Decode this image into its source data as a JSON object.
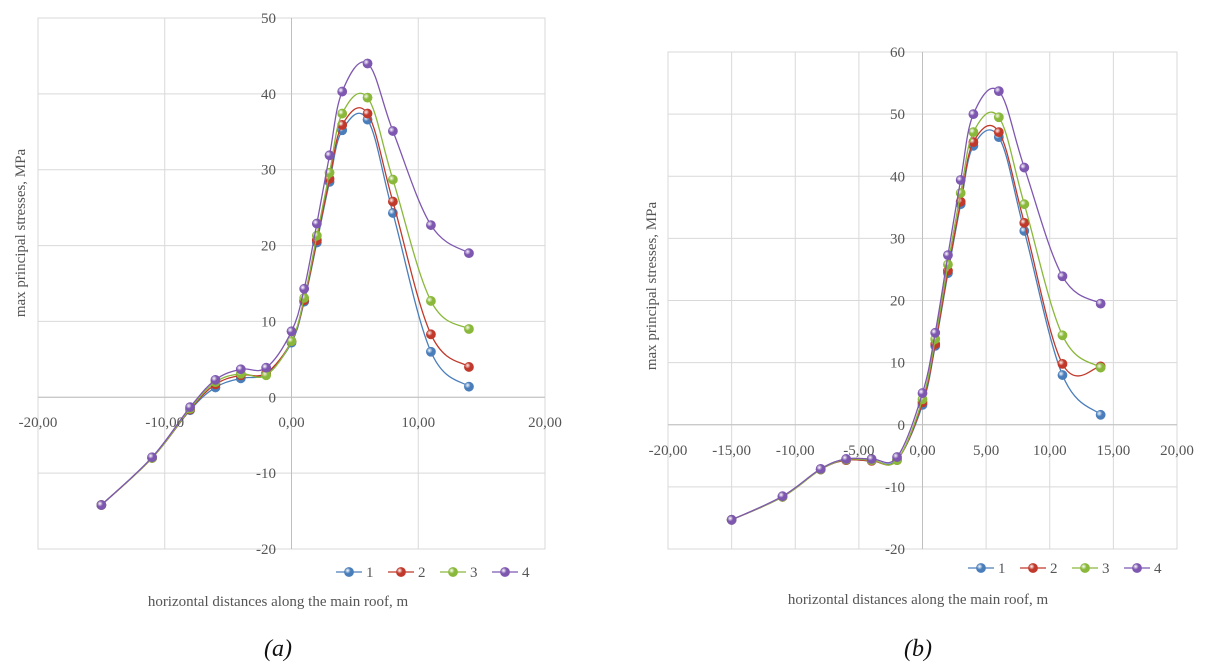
{
  "figure": {
    "panels": [
      "(a)",
      "(b)"
    ]
  },
  "chart_data": [
    {
      "type": "scatter",
      "panel": "(a)",
      "title": "",
      "xlabel": "horizontal distances along the main roof, m",
      "ylabel": "max principal stresses, MPa",
      "xlim": [
        -20,
        20
      ],
      "ylim": [
        -20,
        50
      ],
      "x_ticks": [
        -20,
        -10,
        0,
        10,
        20
      ],
      "x_tick_labels": [
        "-20,00",
        "-10,00",
        "0,00",
        "10,00",
        "20,00"
      ],
      "y_ticks": [
        -20,
        -10,
        0,
        10,
        20,
        30,
        40,
        50
      ],
      "y_tick_labels": [
        "-20",
        "-10",
        "0",
        "10",
        "20",
        "30",
        "40",
        "50"
      ],
      "grid": true,
      "smooth_lines": true,
      "legend_position": "bottom-right",
      "series": [
        {
          "name": "1",
          "color": "#4a7ebb",
          "points": [
            [
              -15,
              -14.2
            ],
            [
              -11,
              -8
            ],
            [
              -8,
              -1.7
            ],
            [
              -6,
              1.3
            ],
            [
              -4,
              2.5
            ],
            [
              -2,
              3.1
            ],
            [
              0,
              7.2
            ],
            [
              1,
              12.6
            ],
            [
              2,
              20.4
            ],
            [
              3,
              28.4
            ],
            [
              4,
              35.2
            ],
            [
              6,
              36.6
            ],
            [
              8,
              24.3
            ],
            [
              11,
              6
            ],
            [
              14,
              1.4
            ]
          ]
        },
        {
          "name": "2",
          "color": "#c0392b",
          "points": [
            [
              -15,
              -14.2
            ],
            [
              -11,
              -8
            ],
            [
              -8,
              -1.6
            ],
            [
              -6,
              1.7
            ],
            [
              -4,
              2.9
            ],
            [
              -2,
              3.2
            ],
            [
              0,
              7.4
            ],
            [
              1,
              12.8
            ],
            [
              2,
              20.7
            ],
            [
              3,
              28.8
            ],
            [
              4,
              35.9
            ],
            [
              6,
              37.4
            ],
            [
              8,
              25.8
            ],
            [
              11,
              8.3
            ],
            [
              14,
              4
            ]
          ]
        },
        {
          "name": "3",
          "color": "#8ab83a",
          "points": [
            [
              -15,
              -14.2
            ],
            [
              -11,
              -8
            ],
            [
              -8,
              -1.5
            ],
            [
              -6,
              2
            ],
            [
              -4,
              3.1
            ],
            [
              -2,
              2.9
            ],
            [
              0,
              7.4
            ],
            [
              1,
              13.1
            ],
            [
              2,
              21.3
            ],
            [
              3,
              29.6
            ],
            [
              4,
              37.4
            ],
            [
              6,
              39.5
            ],
            [
              8,
              28.7
            ],
            [
              11,
              12.7
            ],
            [
              14,
              9
            ]
          ]
        },
        {
          "name": "4",
          "color": "#7e57b0",
          "points": [
            [
              -15,
              -14.2
            ],
            [
              -11,
              -7.9
            ],
            [
              -8,
              -1.3
            ],
            [
              -6,
              2.3
            ],
            [
              -4,
              3.7
            ],
            [
              -2,
              3.9
            ],
            [
              0,
              8.7
            ],
            [
              1,
              14.3
            ],
            [
              2,
              22.9
            ],
            [
              3,
              31.9
            ],
            [
              4,
              40.3
            ],
            [
              6,
              44
            ],
            [
              8,
              35.1
            ],
            [
              11,
              22.7
            ],
            [
              14,
              19
            ]
          ]
        }
      ]
    },
    {
      "type": "scatter",
      "panel": "(b)",
      "title": "",
      "xlabel": "horizontal distances along the main roof, m",
      "ylabel": "max principal stresses, MPa",
      "xlim": [
        -20,
        20
      ],
      "ylim": [
        -20,
        60
      ],
      "x_ticks": [
        -20,
        -15,
        -10,
        -5,
        0,
        5,
        10,
        15,
        20
      ],
      "x_tick_labels": [
        "-20,00",
        "-15,00",
        "-10,00",
        "-5,00",
        "0,00",
        "5,00",
        "10,00",
        "15,00",
        "20,00"
      ],
      "y_ticks": [
        -20,
        -10,
        0,
        10,
        20,
        30,
        40,
        50,
        60
      ],
      "y_tick_labels": [
        "-20",
        "-10",
        "0",
        "10",
        "20",
        "30",
        "40",
        "50",
        "60"
      ],
      "grid": true,
      "smooth_lines": true,
      "legend_position": "bottom-right",
      "series": [
        {
          "name": "1",
          "color": "#4a7ebb",
          "points": [
            [
              -15,
              -15.3
            ],
            [
              -11,
              -11.6
            ],
            [
              -8,
              -7.2
            ],
            [
              -6,
              -5.7
            ],
            [
              -4,
              -5.8
            ],
            [
              -2,
              -5.6
            ],
            [
              0,
              3.2
            ],
            [
              1,
              12.7
            ],
            [
              2,
              24.4
            ],
            [
              3,
              35.5
            ],
            [
              4,
              44.9
            ],
            [
              6,
              46.3
            ],
            [
              8,
              31.2
            ],
            [
              11,
              8
            ],
            [
              14,
              1.6
            ]
          ]
        },
        {
          "name": "2",
          "color": "#c0392b",
          "points": [
            [
              -15,
              -15.3
            ],
            [
              -11,
              -11.6
            ],
            [
              -8,
              -7.2
            ],
            [
              -6,
              -5.7
            ],
            [
              -4,
              -5.8
            ],
            [
              -2,
              -5.7
            ],
            [
              0,
              3.6
            ],
            [
              1,
              13
            ],
            [
              2,
              24.8
            ],
            [
              3,
              35.9
            ],
            [
              4,
              45.5
            ],
            [
              6,
              47.1
            ],
            [
              8,
              32.5
            ],
            [
              11,
              9.8
            ],
            [
              14,
              9.4
            ]
          ]
        },
        {
          "name": "3",
          "color": "#8ab83a",
          "points": [
            [
              -15,
              -15.3
            ],
            [
              -11,
              -11.6
            ],
            [
              -8,
              -7.2
            ],
            [
              -6,
              -5.6
            ],
            [
              -4,
              -5.7
            ],
            [
              -2,
              -5.7
            ],
            [
              0,
              4.1
            ],
            [
              1,
              13.8
            ],
            [
              2,
              25.8
            ],
            [
              3,
              37.3
            ],
            [
              4,
              47.1
            ],
            [
              6,
              49.5
            ],
            [
              8,
              35.5
            ],
            [
              11,
              14.4
            ],
            [
              14,
              9.2
            ]
          ]
        },
        {
          "name": "4",
          "color": "#7e57b0",
          "points": [
            [
              -15,
              -15.3
            ],
            [
              -11,
              -11.5
            ],
            [
              -8,
              -7.1
            ],
            [
              -6,
              -5.5
            ],
            [
              -4,
              -5.5
            ],
            [
              -2,
              -5.2
            ],
            [
              0,
              5.1
            ],
            [
              1,
              14.8
            ],
            [
              2,
              27.3
            ],
            [
              3,
              39.4
            ],
            [
              4,
              50
            ],
            [
              6,
              53.7
            ],
            [
              8,
              41.4
            ],
            [
              11,
              23.9
            ],
            [
              14,
              19.5
            ]
          ]
        }
      ]
    }
  ]
}
